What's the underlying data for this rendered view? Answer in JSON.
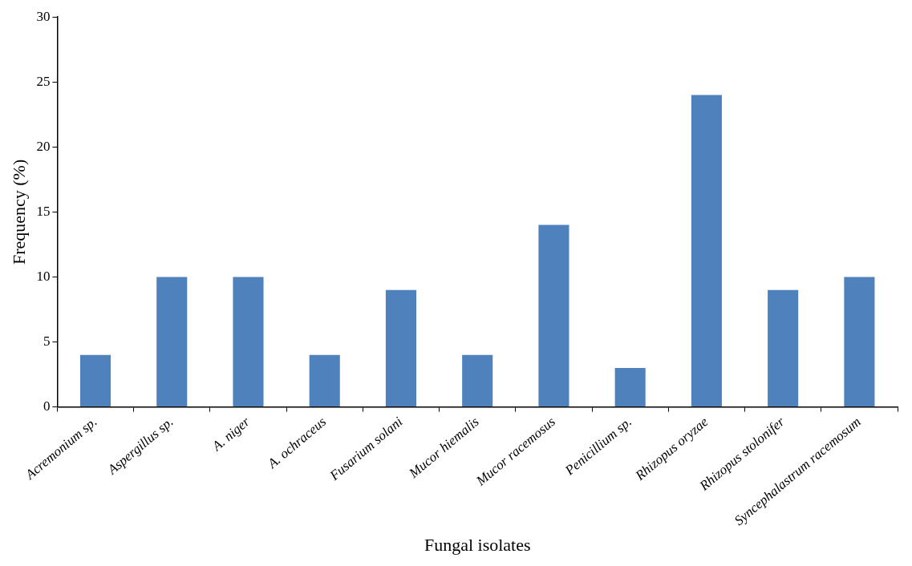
{
  "chart_data": {
    "type": "bar",
    "xlabel": "Fungal isolates",
    "ylabel": "Frequency (%)",
    "categories": [
      "Acremonium sp.",
      "Aspergillus sp.",
      "A. niger",
      "A. ochraceus",
      "Fusarium solani",
      "Mucor hiemalis",
      "Mucor racemosus",
      "Penicillium sp.",
      "Rhizopus oryzae",
      "Rhizopus stolonifer",
      "Syncephalastrum racemosum"
    ],
    "values": [
      4,
      10,
      10,
      4,
      9,
      4,
      14,
      3,
      24,
      9,
      10
    ],
    "color": "#4f81bd",
    "ylim": [
      0,
      30
    ],
    "yticks": [
      0,
      5,
      10,
      15,
      20,
      25,
      30
    ],
    "grid": false,
    "legend": false
  }
}
